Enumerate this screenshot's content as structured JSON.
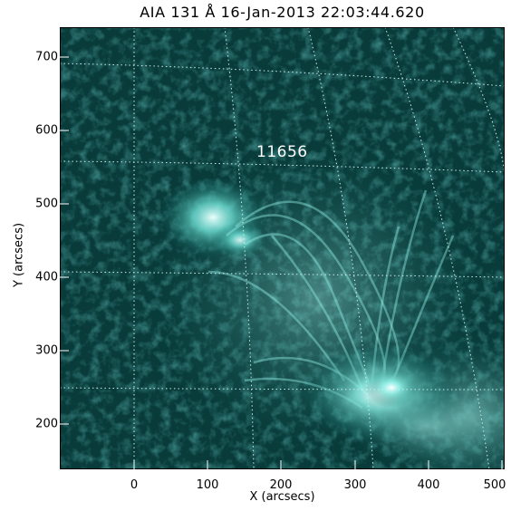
{
  "title": "AIA 131 Å 16-Jan-2013 22:03:44.620",
  "x_axis": {
    "label": "X (arcsecs)",
    "ticks": [
      "0",
      "100",
      "200",
      "300",
      "400",
      "500"
    ]
  },
  "y_axis": {
    "label": "Y (arcsecs)",
    "ticks": [
      "700",
      "600",
      "500",
      "400",
      "300",
      "200"
    ]
  },
  "active_region_label": "11656",
  "colors": {
    "base": "#083b3a",
    "bright": "#d6fffb",
    "grid": "#cfeeee"
  }
}
